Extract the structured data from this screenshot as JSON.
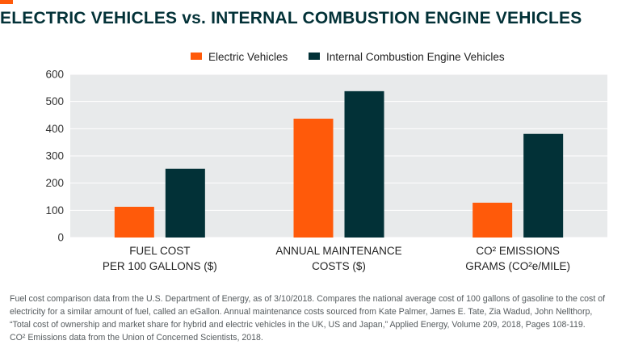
{
  "header": {
    "title": "ELECTRIC VEHICLES vs. INTERNAL COMBUSTION ENGINE VEHICLES"
  },
  "colors": {
    "accent": "#ff5a0a",
    "electric": "#ff5a0a",
    "ice": "#023137",
    "plot_bg": "#e8eaeb"
  },
  "chart_data": {
    "type": "bar",
    "title": "",
    "categories": [
      [
        "FUEL COST",
        "PER 100 GALLONS ($)"
      ],
      [
        "ANNUAL MAINTENANCE",
        "COSTS ($)"
      ],
      [
        "CO² EMISSIONS",
        "GRAMS (CO²e/MILE)"
      ]
    ],
    "series": [
      {
        "name": "Electric Vehicles",
        "values": [
          113,
          437,
          128
        ]
      },
      {
        "name": "Internal Combustion Engine Vehicles",
        "values": [
          253,
          538,
          381
        ]
      }
    ],
    "yticks": [
      0,
      100,
      200,
      300,
      400,
      500,
      600
    ],
    "ylim": [
      0,
      600
    ],
    "xlabel": "",
    "ylabel": "",
    "legend_position": "top-center",
    "grid": true
  },
  "footnote": {
    "lines": [
      "Fuel cost comparison data from the U.S. Department of Energy, as of 3/10/2018. Compares the national average cost of 100 gallons of gasoline to the cost of",
      "electricity for a similar amount of fuel, called an eGallon. Annual maintenance costs sourced from Kate Palmer, James E. Tate, Zia Wadud, John Nellthorp,",
      "“Total cost of ownership and market share for hybrid and electric vehicles in the UK, US and Japan,” Applied Energy, Volume 209, 2018, Pages 108-119.",
      "CO² Emissions data from the Union of Concerned Scientists, 2018."
    ]
  }
}
